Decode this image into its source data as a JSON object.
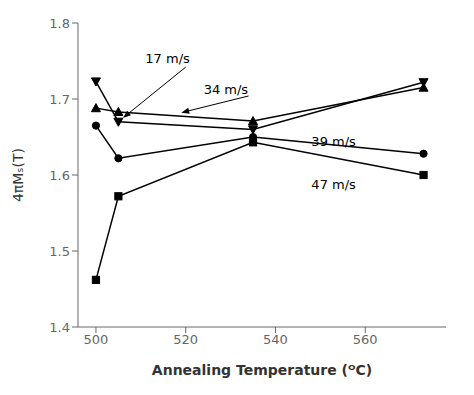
{
  "chart_data": {
    "type": "line",
    "xlabel": "Annealing Temperature (ᴼC)",
    "ylabel": "4πMₛ(T)",
    "x": [
      500,
      505,
      535,
      573
    ],
    "xlim": [
      496,
      578
    ],
    "ylim": [
      1.4,
      1.8
    ],
    "xticks": [
      500,
      520,
      540,
      560
    ],
    "yticks": [
      1.4,
      1.5,
      1.6,
      1.7,
      1.8
    ],
    "grid": false,
    "series": [
      {
        "color": "#000000",
        "marker": "triangle-down",
        "line_style": "solid",
        "values": [
          1.723,
          1.67,
          1.66,
          1.722
        ]
      },
      {
        "color": "#000000",
        "marker": "triangle-up",
        "line_style": "solid",
        "values": [
          1.688,
          1.683,
          1.671,
          1.715
        ]
      },
      {
        "color": "#000000",
        "marker": "circle",
        "line_style": "solid",
        "values": [
          1.665,
          1.622,
          1.65,
          1.628
        ]
      },
      {
        "color": "#000000",
        "marker": "square",
        "line_style": "solid",
        "values": [
          1.462,
          1.572,
          1.643,
          1.6
        ]
      }
    ],
    "annotations": [
      {
        "text": "17 m/s",
        "x": 511,
        "y": 1.748,
        "arrow_from": [
          520,
          1.742
        ],
        "arrow_to": [
          506,
          1.675
        ]
      },
      {
        "text": "34 m/s",
        "x": 524,
        "y": 1.706,
        "arrow_from": [
          534,
          1.704
        ],
        "arrow_to": [
          519,
          1.682
        ]
      },
      {
        "text": "39 m/s",
        "x": 548,
        "y": 1.638
      },
      {
        "text": "47 m/s",
        "x": 548,
        "y": 1.582
      }
    ]
  }
}
